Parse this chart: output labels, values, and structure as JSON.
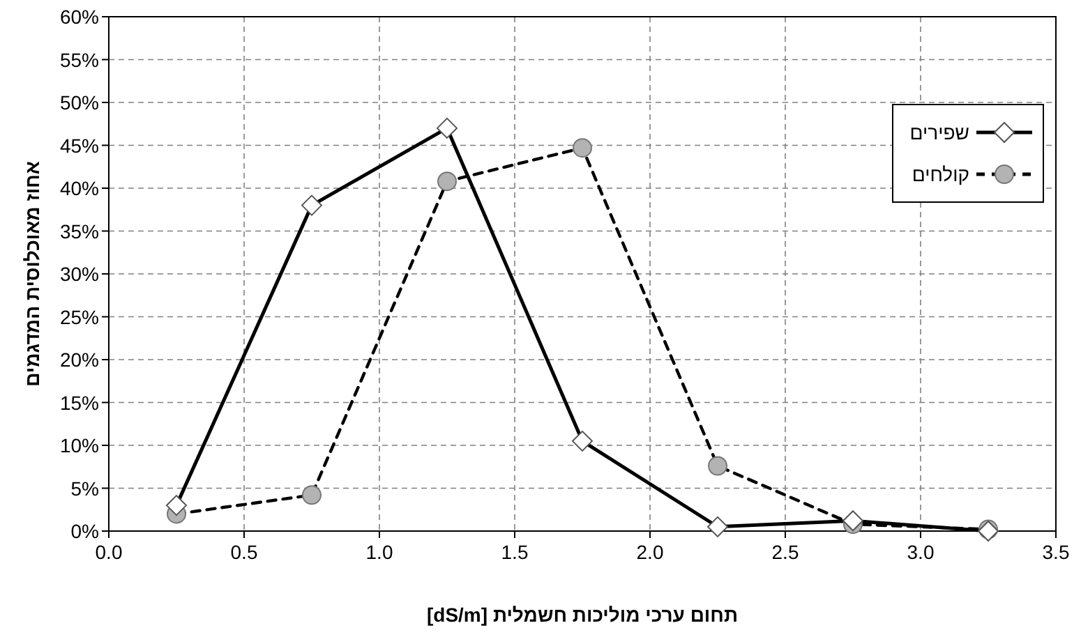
{
  "chart_data": {
    "type": "line",
    "xlabel": "תחום ערכי מוליכות חשמלית [dS/m]",
    "ylabel": "אחוז מאוכלוסית המדגמים",
    "x": [
      0.25,
      0.75,
      1.25,
      1.75,
      2.25,
      2.75,
      3.25
    ],
    "series": [
      {
        "name": "שפירים",
        "color": "#000000",
        "marker": "diamond",
        "line_style": "solid",
        "values": [
          3,
          38,
          47,
          10.5,
          0.5,
          1.2,
          0
        ]
      },
      {
        "name": "קולחים",
        "color": "#000000",
        "marker": "circle",
        "line_style": "dashed",
        "values": [
          2,
          4.2,
          40.8,
          44.7,
          7.6,
          0.8,
          0.2
        ]
      }
    ],
    "xlim": [
      0,
      3.5
    ],
    "xticks": [
      {
        "value": 0,
        "label": "0.0"
      },
      0.5,
      {
        "value": 1,
        "label": "1.0"
      },
      1.5,
      {
        "value": 2,
        "label": "2.0"
      },
      2.5,
      {
        "value": 3,
        "label": "3.0"
      },
      3.5
    ],
    "ylim": [
      0,
      60
    ],
    "yticks": [
      {
        "value": 0,
        "label": "0%"
      },
      {
        "value": 5,
        "label": "5%"
      },
      {
        "value": 10,
        "label": "10%"
      },
      {
        "value": 15,
        "label": "15%"
      },
      {
        "value": 20,
        "label": "20%"
      },
      {
        "value": 25,
        "label": "25%"
      },
      {
        "value": 30,
        "label": "30%"
      },
      {
        "value": 35,
        "label": "35%"
      },
      {
        "value": 40,
        "label": "40%"
      },
      {
        "value": 45,
        "label": "45%"
      },
      {
        "value": 50,
        "label": "50%"
      },
      {
        "value": 55,
        "label": "55%"
      },
      {
        "value": 60,
        "label": "60%"
      }
    ],
    "grid": true,
    "legend": "top right"
  }
}
